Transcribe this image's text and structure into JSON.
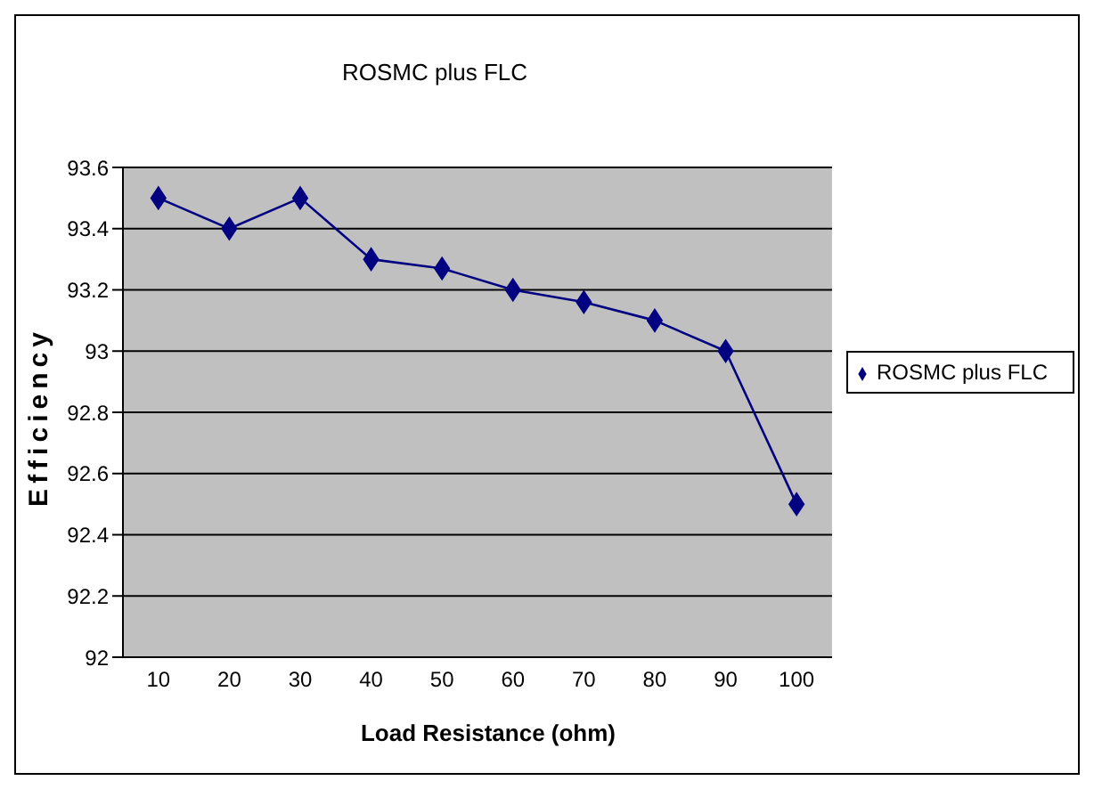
{
  "chart_data": {
    "type": "line",
    "title": "ROSMC plus FLC",
    "xlabel": "Load Resistance (ohm)",
    "ylabel": "Efficiency",
    "categories": [
      "10",
      "20",
      "30",
      "40",
      "50",
      "60",
      "70",
      "80",
      "90",
      "100"
    ],
    "series": [
      {
        "name": "ROSMC plus FLC",
        "color": "#000080",
        "values": [
          93.5,
          93.4,
          93.5,
          93.3,
          93.27,
          93.2,
          93.16,
          93.1,
          93.0,
          92.5
        ]
      }
    ],
    "ylim": [
      92,
      93.6
    ],
    "yticks": [
      {
        "value": 92,
        "label": "92"
      },
      {
        "value": 92.2,
        "label": "92.2"
      },
      {
        "value": 92.4,
        "label": "92.4"
      },
      {
        "value": 92.6,
        "label": "92.6"
      },
      {
        "value": 92.8,
        "label": "92.8"
      },
      {
        "value": 93,
        "label": "93"
      },
      {
        "value": 93.2,
        "label": "93.2"
      },
      {
        "value": 93.4,
        "label": "93.4"
      },
      {
        "value": 93.6,
        "label": "93.6"
      }
    ],
    "grid": "y",
    "legend": "right",
    "marker": "diamond",
    "line_style": "solid"
  }
}
